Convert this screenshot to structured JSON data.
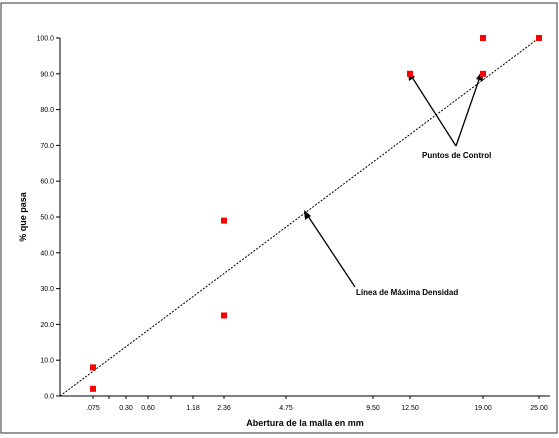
{
  "colors": {
    "point": "#ff0000",
    "line": "#000000",
    "frame": "#333333"
  },
  "chart_data": {
    "type": "scatter",
    "title": "",
    "xlabel": "Abertura de la malla en mm",
    "ylabel": "% que pasa",
    "x_ticks": [
      ".075",
      "0.30",
      "0.60",
      "1.18",
      "2.36",
      "4.75",
      "9.50",
      "12.50",
      "19.00",
      "25.00"
    ],
    "y_ticks": [
      "0.0",
      "10.0",
      "20.0",
      "30.0",
      "40.0",
      "50.0",
      "60.0",
      "70.0",
      "80.0",
      "90.0",
      "100.0"
    ],
    "ylim": [
      0,
      100
    ],
    "grid": false,
    "series": [
      {
        "points": [
          {
            "x": ".075",
            "y": 8.0
          },
          {
            "x": ".075",
            "y": 2.0
          },
          {
            "x": "2.36",
            "y": 49.0
          },
          {
            "x": "2.36",
            "y": 22.5
          },
          {
            "x": "12.50",
            "y": 90.0
          },
          {
            "x": "19.00",
            "y": 100.0
          },
          {
            "x": "19.00",
            "y": 90.0
          },
          {
            "x": "25.00",
            "y": 100.0
          }
        ]
      }
    ],
    "reference_line": {
      "from": {
        "x": 0,
        "y": 0
      },
      "to": {
        "x": "25.00",
        "y": 100.0
      },
      "style": "dotted"
    },
    "annotations": [
      {
        "text": "Puntos de Control"
      },
      {
        "text": "Línea de Máxima Densidad"
      }
    ]
  }
}
